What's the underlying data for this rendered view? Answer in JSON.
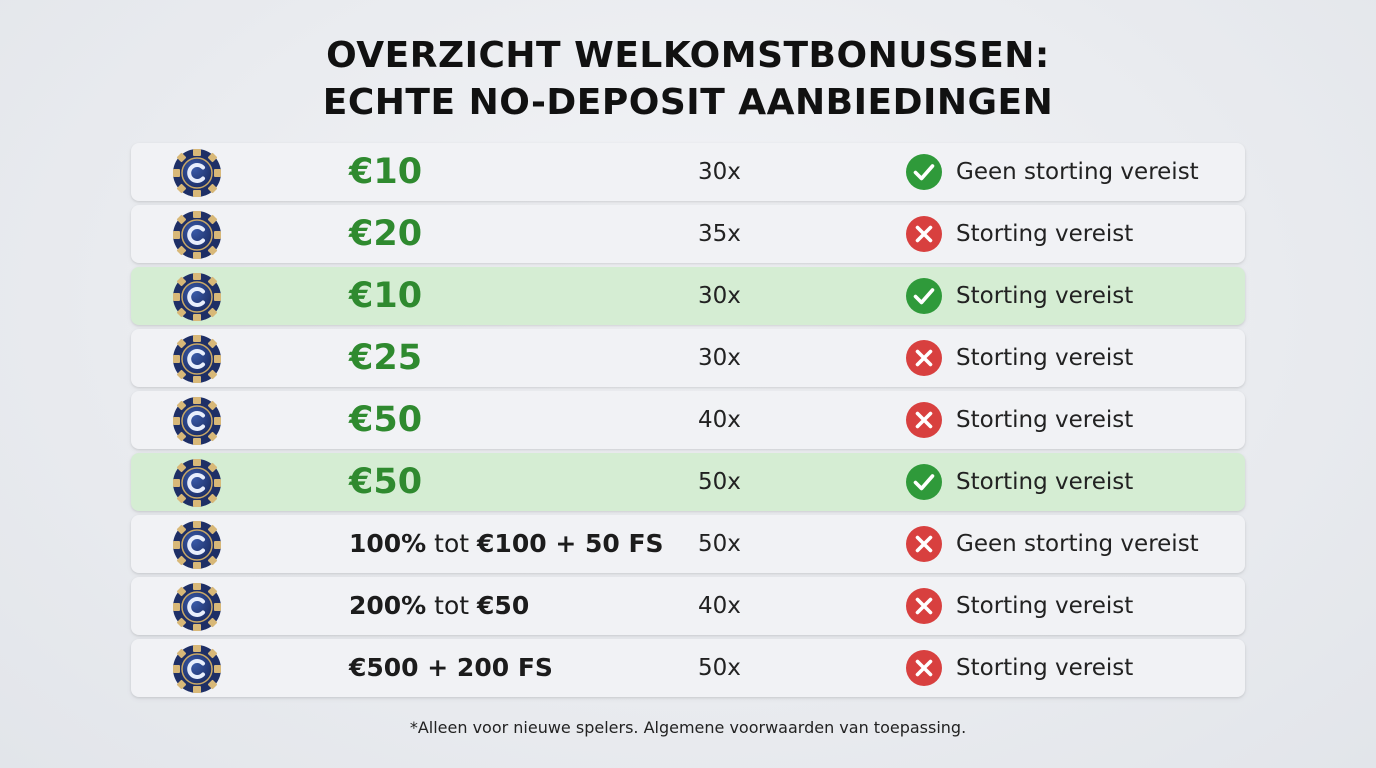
{
  "title": {
    "line1": "OVERZICHT WELKOMSTBONUSSEN:",
    "line2": "ECHTE NO-DEPOSIT AANBIEDINGEN"
  },
  "colors": {
    "positive": "#2f9a3a",
    "negative": "#d8403f",
    "highlight_row": "#d5edd3",
    "amount_green": "#2f8a2f"
  },
  "rows": [
    {
      "icon": "casino-chip-icon",
      "amount_main": "€10",
      "amount_suffix": "",
      "amount_style": "green",
      "wager": "30x",
      "status_icon": "check-icon",
      "status_text": "Geen storting vereist",
      "highlight": false
    },
    {
      "icon": "casino-chip-icon",
      "amount_main": "€20",
      "amount_suffix": "",
      "amount_style": "green",
      "wager": "35x",
      "status_icon": "cross-icon",
      "status_text": "Storting vereist",
      "highlight": false
    },
    {
      "icon": "casino-chip-icon",
      "amount_main": "€10",
      "amount_suffix": "",
      "amount_style": "green",
      "wager": "30x",
      "status_icon": "check-icon",
      "status_text": "Storting vereist",
      "highlight": true
    },
    {
      "icon": "casino-chip-icon",
      "amount_main": "€25",
      "amount_suffix": "",
      "amount_style": "green",
      "wager": "30x",
      "status_icon": "cross-icon",
      "status_text": "Storting vereist",
      "highlight": false
    },
    {
      "icon": "casino-chip-icon",
      "amount_main": "€50",
      "amount_suffix": "",
      "amount_style": "green",
      "wager": "40x",
      "status_icon": "cross-icon",
      "status_text": "Storting vereist",
      "highlight": false
    },
    {
      "icon": "casino-chip-icon",
      "amount_main": "€50",
      "amount_suffix": "",
      "amount_style": "green",
      "wager": "50x",
      "status_icon": "check-icon",
      "status_text": "Storting vereist",
      "highlight": true
    },
    {
      "icon": "casino-chip-icon",
      "amount_main": "100%",
      "amount_mid": " tot ",
      "amount_suffix": "€100 + 50 FS",
      "amount_style": "dark",
      "wager": "50x",
      "status_icon": "cross-icon",
      "status_text": "Geen storting vereist",
      "highlight": false
    },
    {
      "icon": "casino-chip-icon",
      "amount_main": "200%",
      "amount_mid": " tot ",
      "amount_suffix": "€50",
      "amount_style": "dark",
      "wager": "40x",
      "status_icon": "cross-icon",
      "status_text": "Storting vereist",
      "highlight": false
    },
    {
      "icon": "casino-chip-icon",
      "amount_main": "€500 + 200 FS",
      "amount_suffix": "",
      "amount_style": "dark",
      "wager": "50x",
      "status_icon": "cross-icon",
      "status_text": "Storting vereist",
      "highlight": false
    }
  ],
  "footnote": "*Alleen voor nieuwe spelers. Algemene voorwaarden van toepassing."
}
